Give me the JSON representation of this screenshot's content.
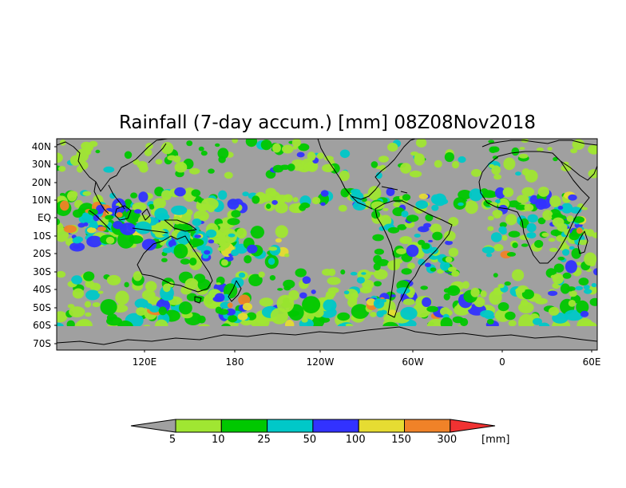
{
  "map": {
    "title": "Rainfall (7-day accum.) [mm] 08Z08Nov2018",
    "lat_labels": [
      "40N",
      "30N",
      "20N",
      "10N",
      "EQ",
      "10S",
      "20S",
      "30S",
      "40S",
      "50S",
      "60S",
      "70S"
    ],
    "lon_labels": [
      "120E",
      "180",
      "120W",
      "60W",
      "0",
      "60E"
    ],
    "colors": {
      "ocean_background": "#a0a0a0",
      "coastline": "#000000"
    }
  },
  "legend": {
    "unit": "[mm]",
    "thresholds": [
      "5",
      "10",
      "25",
      "50",
      "100",
      "150",
      "300"
    ],
    "colors": [
      "#a0a0a0",
      "#a0e632",
      "#00c800",
      "#00c8c8",
      "#3232ff",
      "#e6dc32",
      "#f08228",
      "#f03232"
    ]
  }
}
